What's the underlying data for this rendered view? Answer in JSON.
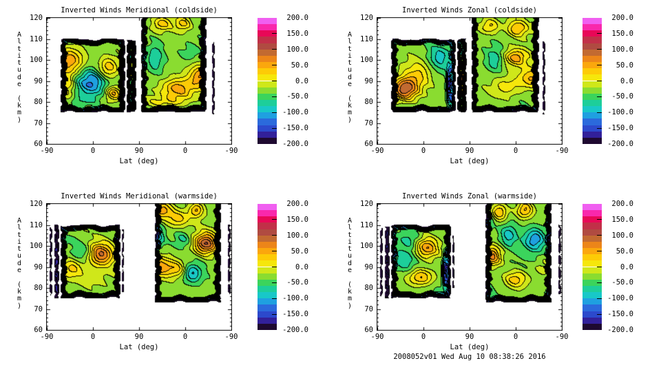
{
  "figure": {
    "background": "#FFFFFF",
    "text_color": "#000000",
    "footer": {
      "timestamp": "2008052v01 Wed Aug 10 08:38:26 2016"
    }
  },
  "chart_data": {
    "type": "contour",
    "layout": "2x2 grid of filled contour panels, each with its own rainbow colorbar",
    "xlabel": "Lat (deg)",
    "ylabel": "Altitude (km)",
    "x_tick_labels": [
      "-90",
      "0",
      "90",
      "0",
      "-90"
    ],
    "y_tick_labels": [
      "120",
      "110",
      "100",
      "90",
      "80",
      "70",
      "60"
    ],
    "y_range_km": [
      60,
      120
    ],
    "x_axis_description": "Latitude along scan: -90 up to 90 (ascending node) then back down to -90 (descending node)",
    "grid": "off",
    "contour_levels": {
      "min": -200,
      "max": 200,
      "step": 20
    },
    "colorbar_tick_labels": [
      "200.0",
      "150.0",
      "100.0",
      "50.0",
      "0.0",
      "-50.0",
      "-100.0",
      "-150.0",
      "-200.0"
    ],
    "colorbar_tick_values": [
      200,
      150,
      100,
      50,
      0,
      -50,
      -100,
      -150,
      -200
    ],
    "palette_low_to_high": [
      "#1E0930",
      "#32209A",
      "#2C49CC",
      "#2B6ADC",
      "#1FA0E0",
      "#18C8C8",
      "#1DCE9A",
      "#3BD45C",
      "#8ADC30",
      "#CFE71A",
      "#F6E70B",
      "#FDCB06",
      "#FBA70D",
      "#EC8519",
      "#C26A31",
      "#B04B41",
      "#C13048",
      "#E80857",
      "#F928AC",
      "#F05FF0"
    ],
    "panels": [
      {
        "title": "Inverted Winds Meridional (coldside)",
        "grid_pos": [
          0,
          0
        ],
        "blocks": [
          [
            0.3,
            1.7,
            75,
            110,
            -30,
            0
          ],
          [
            1.73,
            1.94,
            75,
            110,
            -15,
            0
          ],
          [
            2.04,
            3.46,
            75,
            120,
            -30,
            1
          ],
          [
            3.58,
            3.64,
            74,
            109,
            -195,
            0
          ]
        ],
        "features": [
          [
            0.52,
            100,
            0.3,
            6.0,
            75
          ],
          [
            0.45,
            88,
            0.15,
            8.0,
            45
          ],
          [
            0.95,
            89,
            0.32,
            6.5,
            -100
          ],
          [
            1.33,
            96,
            0.22,
            5.0,
            70
          ],
          [
            1.45,
            84,
            0.18,
            3.5,
            75
          ],
          [
            0.8,
            80.5,
            0.3,
            2.5,
            -25
          ],
          [
            1.85,
            95,
            0.1,
            7.0,
            95
          ],
          [
            2.5,
            117,
            0.2,
            3.5,
            60
          ],
          [
            2.95,
            117,
            0.18,
            3.5,
            55
          ],
          [
            2.35,
            101,
            0.18,
            7.0,
            -45
          ],
          [
            2.85,
            86,
            0.35,
            5.0,
            85
          ],
          [
            3.32,
            92,
            0.22,
            5.0,
            80
          ],
          [
            3.1,
            103,
            0.2,
            4.0,
            -25
          ],
          [
            2.6,
            80,
            0.5,
            2.5,
            30
          ]
        ]
      },
      {
        "title": "Inverted Winds Zonal (coldside)",
        "grid_pos": [
          0,
          1
        ],
        "blocks": [
          [
            0.3,
            1.7,
            75,
            110,
            -35,
            0
          ],
          [
            1.73,
            1.94,
            75,
            110,
            -10,
            0
          ],
          [
            2.04,
            3.5,
            75,
            120,
            -30,
            1
          ],
          [
            3.58,
            3.64,
            74,
            109,
            -195,
            0
          ]
        ],
        "features": [
          [
            0.6,
            86,
            0.28,
            5.5,
            135
          ],
          [
            0.9,
            93,
            0.3,
            7.0,
            50
          ],
          [
            1.35,
            101,
            0.25,
            6.0,
            -50
          ],
          [
            1.56,
            88,
            0.05,
            8.0,
            -140
          ],
          [
            1.68,
            93,
            0.08,
            6.0,
            60
          ],
          [
            1.86,
            91,
            0.09,
            8.0,
            185
          ],
          [
            2.45,
            116,
            0.2,
            3.5,
            55
          ],
          [
            3.05,
            115,
            0.22,
            4.0,
            75
          ],
          [
            3.5,
            116,
            0.13,
            3.0,
            60
          ],
          [
            2.55,
            100,
            0.2,
            6.0,
            -45
          ],
          [
            3.0,
            101,
            0.25,
            4.0,
            80
          ],
          [
            3.35,
            91,
            0.3,
            5.0,
            70
          ],
          [
            2.8,
            87,
            0.3,
            5.0,
            40
          ],
          [
            3.62,
            103,
            0.13,
            4.0,
            -30
          ]
        ]
      },
      {
        "title": "Inverted Winds Meridional (warmside)",
        "grid_pos": [
          1,
          0
        ],
        "blocks": [
          [
            0.055,
            0.115,
            76,
            109,
            -150,
            0
          ],
          [
            0.16,
            0.27,
            75,
            110,
            -120,
            0
          ],
          [
            0.3,
            1.6,
            75,
            110,
            -30,
            0
          ],
          [
            1.625,
            1.675,
            78,
            108,
            -185,
            0
          ],
          [
            2.34,
            3.78,
            73,
            120,
            -30,
            1
          ],
          [
            3.92,
            3.98,
            77,
            110,
            -165,
            0
          ]
        ],
        "features": [
          [
            0.55,
            89,
            0.25,
            5.0,
            65
          ],
          [
            0.78,
            97,
            0.22,
            5.0,
            -40
          ],
          [
            1.18,
            96,
            0.28,
            5.5,
            110
          ],
          [
            0.95,
            84,
            0.25,
            4.0,
            30
          ],
          [
            0.5,
            104,
            0.25,
            3.0,
            -20
          ],
          [
            2.5,
            117,
            0.22,
            4.0,
            85
          ],
          [
            2.85,
            113,
            0.25,
            4.0,
            60
          ],
          [
            3.25,
            117,
            0.15,
            3.5,
            70
          ],
          [
            2.42,
            104,
            0.15,
            6.0,
            -60
          ],
          [
            2.45,
            90,
            0.24,
            5.0,
            75
          ],
          [
            2.82,
            89,
            0.25,
            4.0,
            60
          ],
          [
            3.15,
            87,
            0.2,
            4.5,
            -70
          ],
          [
            3.45,
            101,
            0.25,
            5.0,
            125
          ],
          [
            2.95,
            103,
            0.2,
            4.0,
            -35
          ],
          [
            2.34,
            96,
            0.1,
            6.0,
            55
          ]
        ]
      },
      {
        "title": "Inverted Winds Zonal (warmside)",
        "grid_pos": [
          1,
          1
        ],
        "blocks": [
          [
            0.055,
            0.115,
            76,
            109,
            -150,
            0
          ],
          [
            0.16,
            0.27,
            75,
            110,
            -130,
            0
          ],
          [
            0.3,
            1.6,
            75,
            110,
            -38,
            0
          ],
          [
            1.625,
            1.675,
            80,
            105,
            -185,
            0
          ],
          [
            2.34,
            3.78,
            73,
            120,
            -38,
            1
          ],
          [
            3.92,
            3.98,
            77,
            110,
            -165,
            0
          ]
        ],
        "features": [
          [
            1.08,
            99,
            0.25,
            5.0,
            95
          ],
          [
            0.95,
            85,
            0.28,
            4.0,
            80
          ],
          [
            0.6,
            93,
            0.2,
            5.0,
            -35
          ],
          [
            0.72,
            103,
            0.2,
            4.0,
            -30
          ],
          [
            1.47,
            88,
            0.05,
            7.0,
            -130
          ],
          [
            2.65,
            116,
            0.18,
            4.0,
            75
          ],
          [
            3.2,
            117,
            0.18,
            4.0,
            80
          ],
          [
            2.48,
            95,
            0.22,
            5.0,
            105
          ],
          [
            2.85,
            105,
            0.18,
            5.0,
            -55
          ],
          [
            3.42,
            103,
            0.22,
            5.0,
            -75
          ],
          [
            3.0,
            84,
            0.25,
            4.0,
            65
          ],
          [
            2.4,
            112,
            0.13,
            4.0,
            -40
          ],
          [
            3.6,
            90,
            0.2,
            5.0,
            30
          ]
        ]
      }
    ]
  }
}
